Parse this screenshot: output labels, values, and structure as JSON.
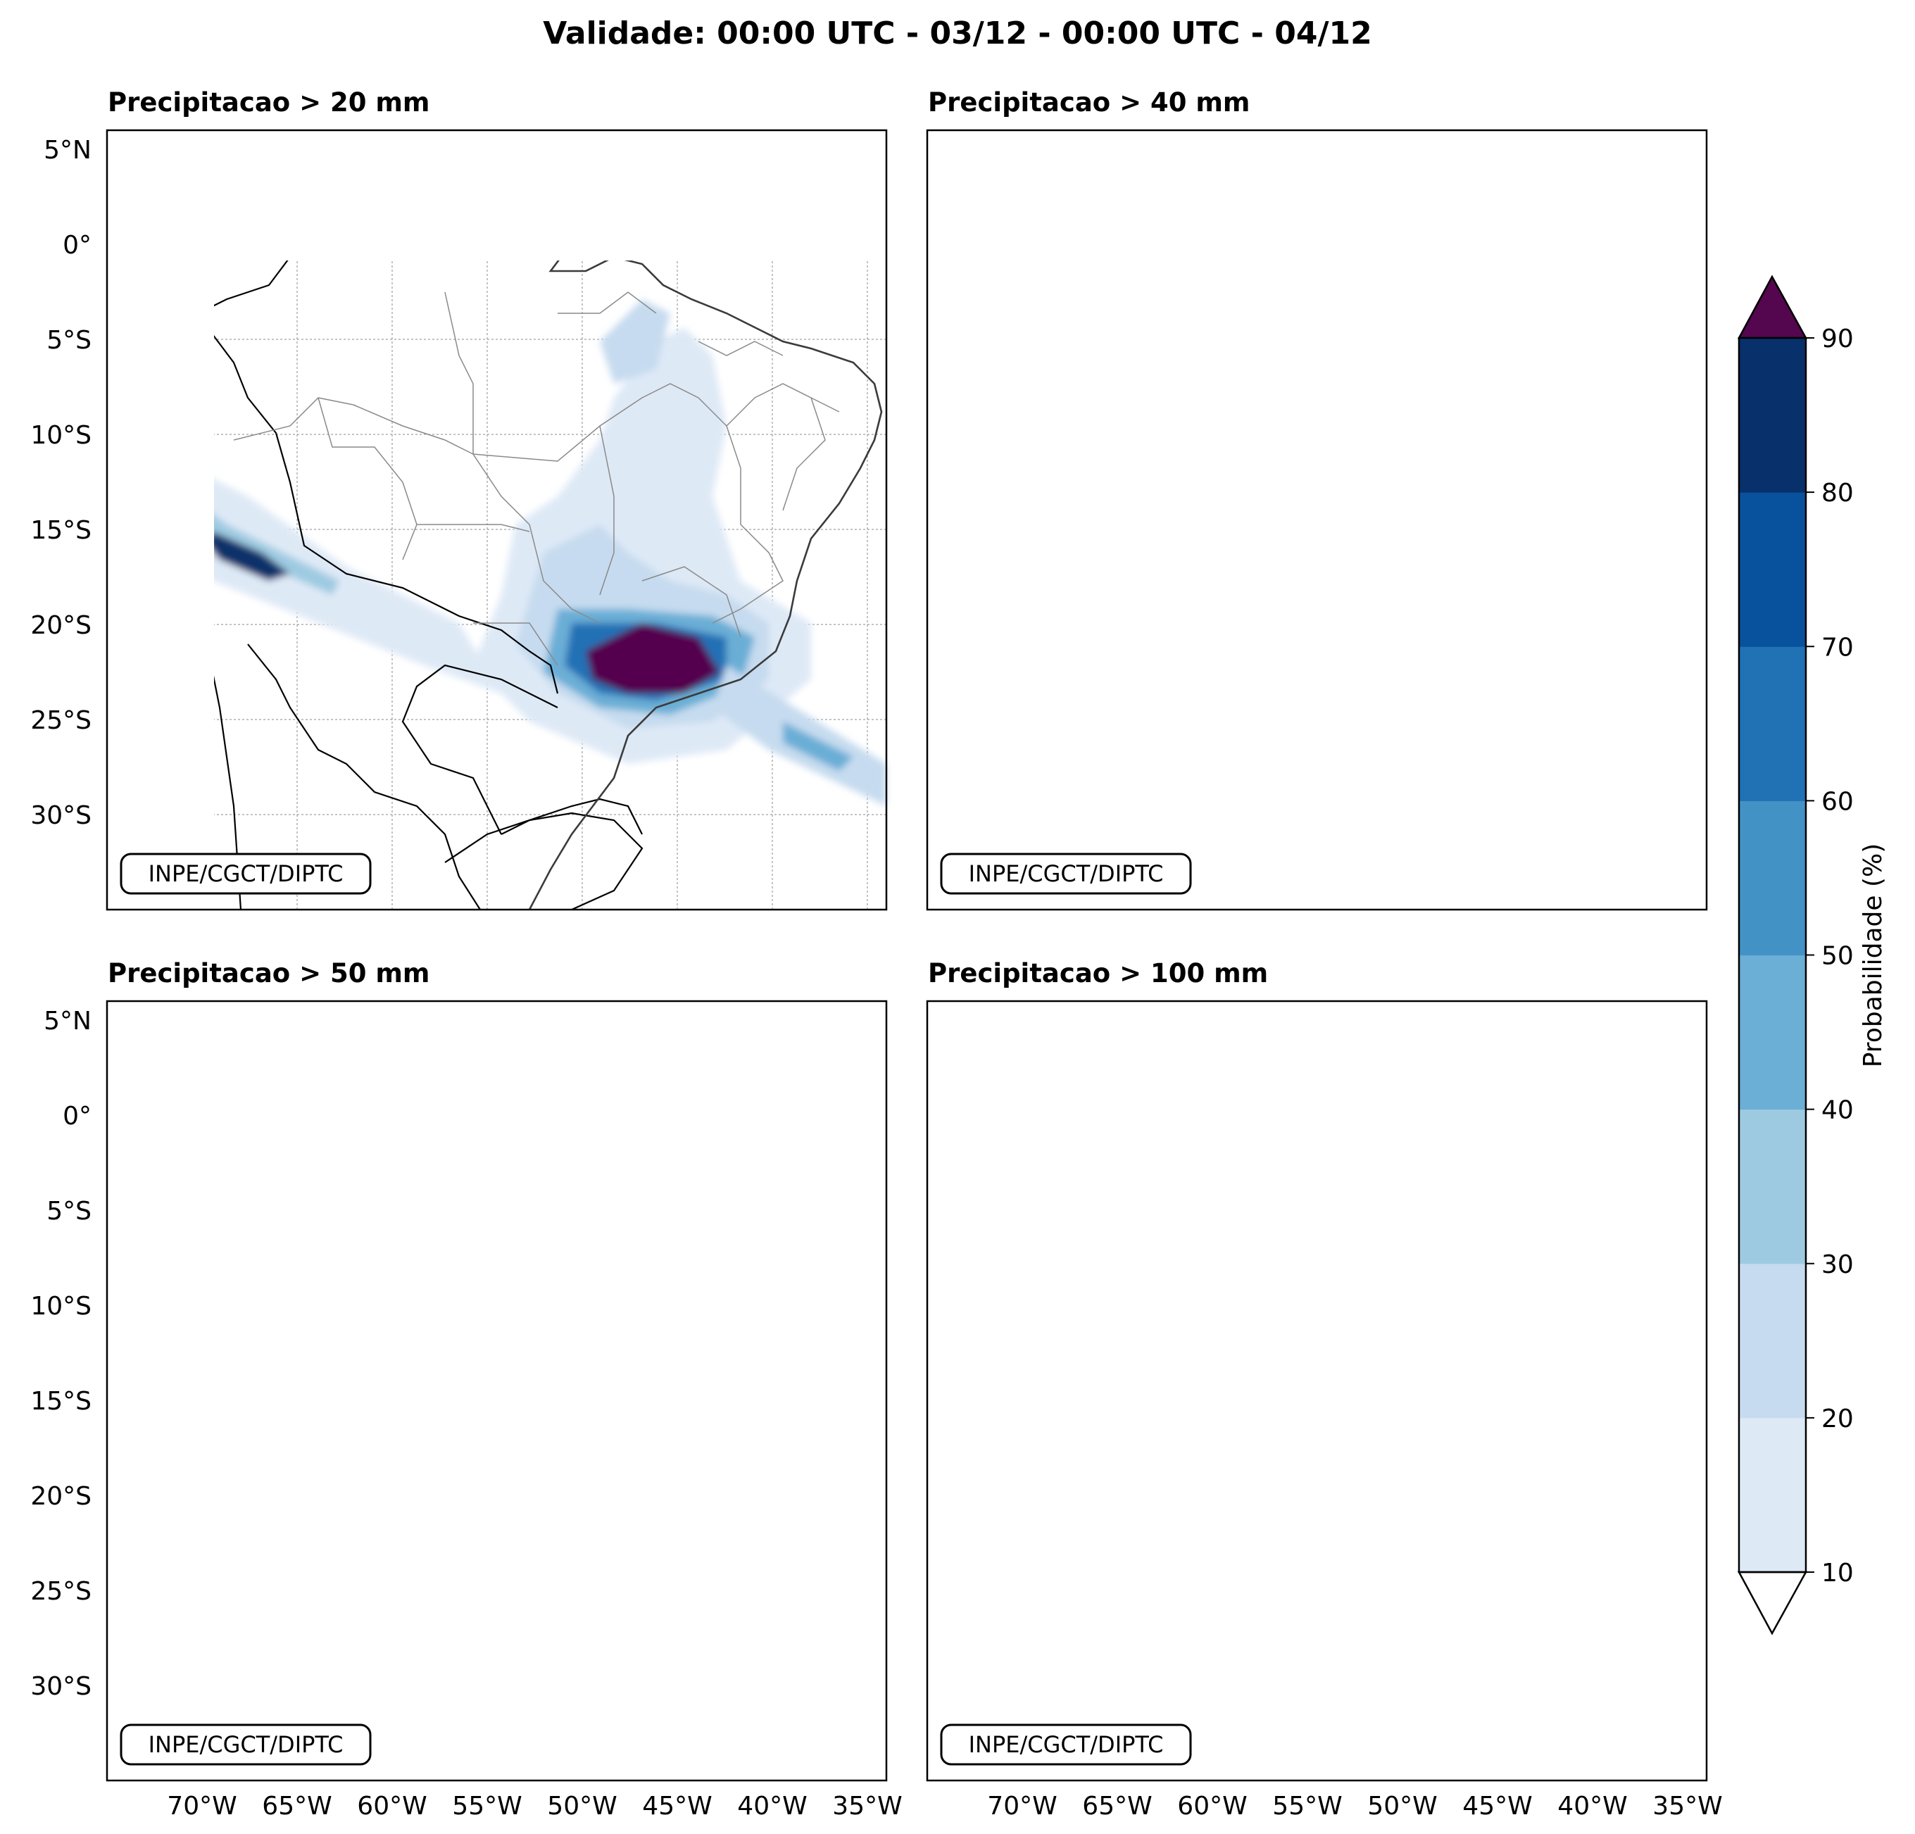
{
  "figure_title": "Validade: 00:00 UTC - 03/12 - 00:00 UTC - 04/12",
  "lat_ticks": [
    "5°N",
    "0°",
    "5°S",
    "10°S",
    "15°S",
    "20°S",
    "25°S",
    "30°S"
  ],
  "lat_values": [
    5,
    0,
    -5,
    -10,
    -15,
    -20,
    -25,
    -30
  ],
  "lon_ticks": [
    "70°W",
    "65°W",
    "60°W",
    "55°W",
    "50°W",
    "45°W",
    "40°W",
    "35°W"
  ],
  "lon_values": [
    -70,
    -65,
    -60,
    -55,
    -50,
    -45,
    -40,
    -35
  ],
  "extent": {
    "lon_min": -75,
    "lon_max": -34,
    "lat_min": -35,
    "lat_max": 6
  },
  "panels": [
    {
      "title": "Precipitacao > 20 mm",
      "credit": "INPE/CGCT/DIPTC"
    },
    {
      "title": "Precipitacao > 40 mm",
      "credit": "INPE/CGCT/DIPTC"
    },
    {
      "title": "Precipitacao > 50 mm",
      "credit": "INPE/CGCT/DIPTC"
    },
    {
      "title": "Precipitacao > 100 mm",
      "credit": "INPE/CGCT/DIPTC"
    }
  ],
  "colorbar": {
    "label": "Probabilidade (%)",
    "ticks": [
      "10",
      "20",
      "30",
      "40",
      "50",
      "60",
      "70",
      "80",
      "90"
    ],
    "levels": [
      10,
      20,
      30,
      40,
      50,
      60,
      70,
      80,
      90
    ],
    "colors": [
      "#dee9f6",
      "#c6dbef",
      "#9ecae1",
      "#6baed6",
      "#4292c6",
      "#2171b5",
      "#08519c",
      "#08306b"
    ],
    "over_color": "#54064f",
    "under_color": "#ffffff",
    "extend": "both"
  }
}
